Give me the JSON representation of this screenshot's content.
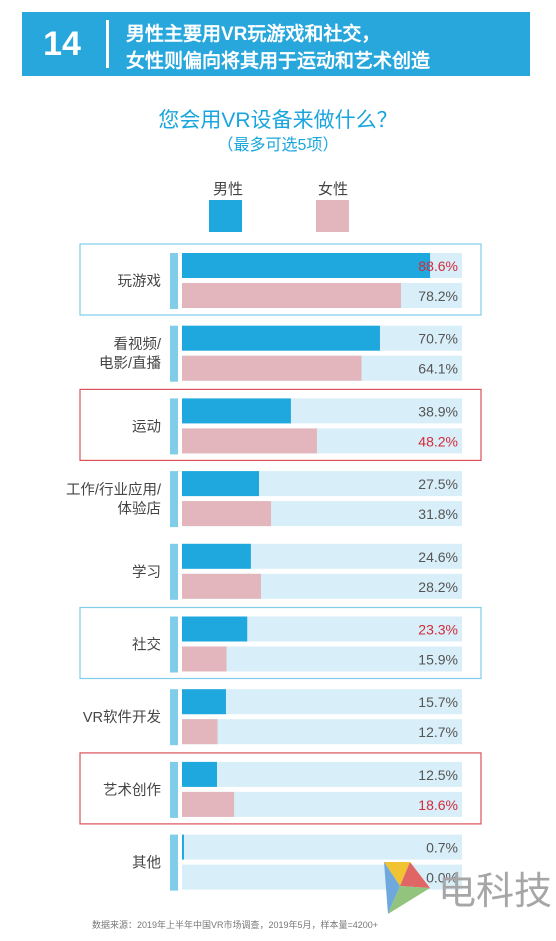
{
  "header": {
    "number": "14",
    "line1": "男性主要用VR玩游戏和社交，",
    "line2": "女性则偏向将其用于运动和艺术创造"
  },
  "chart_data": {
    "type": "bar",
    "title": "您会用VR设备来做什么？",
    "subtitle": "（最多可选5项）",
    "categories": [
      "玩游戏",
      "看视频/\n电影/直播",
      "运动",
      "工作/行业应用/\n体验店",
      "学习",
      "社交",
      "VR软件开发",
      "艺术创作",
      "其他"
    ],
    "series": [
      {
        "name": "男性",
        "values": [
          88.6,
          70.7,
          38.9,
          27.5,
          24.6,
          23.3,
          15.7,
          12.5,
          0.7
        ],
        "value_labels": [
          "88.6%",
          "70.7%",
          "38.9%",
          "27.5%",
          "24.6%",
          "23.3%",
          "15.7%",
          "12.5%",
          "0.7%"
        ]
      },
      {
        "name": "女性",
        "values": [
          78.2,
          64.1,
          48.2,
          31.8,
          28.2,
          15.9,
          12.7,
          18.6,
          0.0
        ],
        "value_labels": [
          "78.2%",
          "64.1%",
          "48.2%",
          "31.8%",
          "28.2%",
          "15.9%",
          "12.7%",
          "18.6%",
          "0.0%"
        ]
      }
    ],
    "highlight_male": [
      0,
      5
    ],
    "highlight_female": [
      2,
      7
    ],
    "xlim": [
      0,
      100
    ],
    "grid": false,
    "legend_position": "top-center",
    "colors": {
      "male": "#1fa8de",
      "female": "#e2b6bc",
      "track": "#d8eef8",
      "highlight_text": "#d42a3a",
      "normal_text": "#555555",
      "male_frame": "#7fcde9",
      "female_frame": "#d9525a",
      "label_strip": "#7fcde9"
    }
  },
  "source": "数据来源：2019年上半年中国VR市场调查，2019年5月，样本量=4200+",
  "watermark": {
    "text": "电科技",
    "logo_icon": "dianke-logo-icon"
  }
}
